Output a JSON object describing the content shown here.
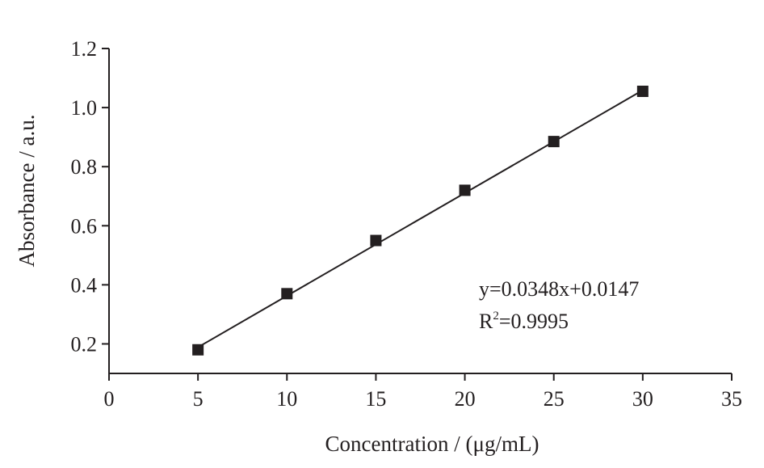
{
  "chart_data": {
    "type": "scatter",
    "title": "",
    "xlabel": "Concentration / (μg/mL)",
    "ylabel": "Absorbance / a.u.",
    "xlim": [
      0,
      35
    ],
    "ylim": [
      0.1,
      1.2
    ],
    "x_ticks": [
      0,
      5,
      10,
      15,
      20,
      25,
      30,
      35
    ],
    "y_ticks": [
      0.2,
      0.4,
      0.6,
      0.8,
      1.0,
      1.2
    ],
    "x_tick_labels": [
      "0",
      "5",
      "10",
      "15",
      "20",
      "25",
      "30",
      "35"
    ],
    "y_tick_labels": [
      "0.2",
      "0.4",
      "0.6",
      "0.8",
      "1.0",
      "1.2"
    ],
    "grid": false,
    "legend": "none",
    "series": [
      {
        "marker": "square",
        "color": "#231f20",
        "points": [
          {
            "x": 5,
            "y": 0.18
          },
          {
            "x": 10,
            "y": 0.37
          },
          {
            "x": 15,
            "y": 0.55
          },
          {
            "x": 20,
            "y": 0.72
          },
          {
            "x": 25,
            "y": 0.885
          },
          {
            "x": 30,
            "y": 1.055
          }
        ]
      }
    ],
    "fit_line": {
      "slope": 0.0348,
      "intercept": 0.0147,
      "x_range": [
        5,
        30
      ],
      "color": "#231f20"
    },
    "annotations": {
      "equation": "y=0.0348x+0.0147",
      "r2_prefix": "R",
      "r2_sup": "2",
      "r2_value": "=0.9995"
    }
  }
}
